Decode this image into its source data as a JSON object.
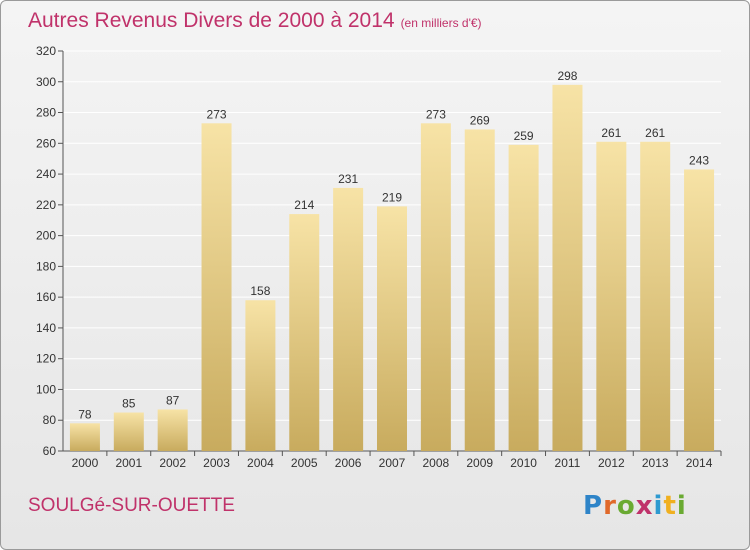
{
  "title": "Autres Revenus Divers de 2000 à 2014",
  "subtitle": "(en milliers d'€)",
  "commune": "SOULGé-SUR-OUETTE",
  "logo": {
    "text": "Proxiti",
    "letters": [
      "P",
      "r",
      "o",
      "x",
      "i",
      "t",
      "i"
    ]
  },
  "colors": {
    "title": "#c0326a",
    "bar_light": "#f7e3a6",
    "bar_dark": "#c8ab5e",
    "grid": "#ffffff",
    "axis": "#555555"
  },
  "chart_data": {
    "type": "bar",
    "categories": [
      "2000",
      "2001",
      "2002",
      "2003",
      "2004",
      "2005",
      "2006",
      "2007",
      "2008",
      "2009",
      "2010",
      "2011",
      "2012",
      "2013",
      "2014"
    ],
    "values": [
      78,
      85,
      87,
      273,
      158,
      214,
      231,
      219,
      273,
      269,
      259,
      298,
      261,
      261,
      243
    ],
    "title": "Autres Revenus Divers de 2000 à 2014",
    "xlabel": "",
    "ylabel": "",
    "ylim": [
      60,
      320
    ],
    "yticks": [
      60,
      80,
      100,
      120,
      140,
      160,
      180,
      200,
      220,
      240,
      260,
      280,
      300,
      320
    ],
    "grid": true,
    "data_labels": true
  }
}
